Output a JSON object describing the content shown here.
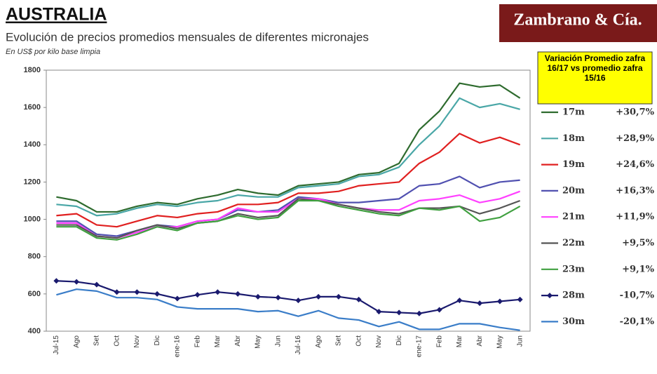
{
  "chart_data": {
    "type": "line",
    "title": "AUSTRALIA",
    "subtitle": "Evolución de precios promedios mensuales de diferentes micronajes",
    "y_label": "En US$ por kilo base limpia",
    "brand": "Zambrano & Cía.",
    "legend_title": "Variación Promedio zafra 16/17 vs promedio zafra 15/16",
    "categories": [
      "Jul-15",
      "Ago",
      "Set",
      "Oct",
      "Nov",
      "Dic",
      "ene-16",
      "Feb",
      "Mar",
      "Abr",
      "May",
      "Jun",
      "Jul-16",
      "Ago",
      "Set",
      "Oct",
      "Nov",
      "Dic",
      "ene-17",
      "Feb",
      "Mar",
      "Abr",
      "May",
      "Jun"
    ],
    "ylim": [
      400,
      1800
    ],
    "yticks": [
      400,
      600,
      800,
      1000,
      1200,
      1400,
      1600,
      1800
    ],
    "grid": false,
    "legend": "right",
    "series": [
      {
        "name": "17m",
        "change": "+30,7%",
        "color": "#2e6b2e",
        "values": [
          1120,
          1100,
          1040,
          1040,
          1070,
          1090,
          1080,
          1110,
          1130,
          1160,
          1140,
          1130,
          1180,
          1190,
          1200,
          1240,
          1250,
          1300,
          1480,
          1580,
          1730,
          1710,
          1720,
          1650
        ]
      },
      {
        "name": "18m",
        "change": "+28,9%",
        "color": "#4aa7a7",
        "values": [
          1080,
          1070,
          1020,
          1030,
          1060,
          1080,
          1070,
          1090,
          1100,
          1130,
          1120,
          1120,
          1170,
          1180,
          1190,
          1230,
          1240,
          1280,
          1400,
          1500,
          1650,
          1600,
          1620,
          1590
        ]
      },
      {
        "name": "19m",
        "change": "+24,6%",
        "color": "#e02020",
        "values": [
          1020,
          1030,
          970,
          960,
          990,
          1020,
          1010,
          1030,
          1040,
          1080,
          1080,
          1090,
          1140,
          1140,
          1150,
          1180,
          1190,
          1200,
          1300,
          1360,
          1460,
          1410,
          1440,
          1400
        ]
      },
      {
        "name": "20m",
        "change": "+16,3%",
        "color": "#5050b0",
        "values": [
          990,
          990,
          920,
          910,
          940,
          970,
          960,
          990,
          1000,
          1050,
          1040,
          1050,
          1120,
          1110,
          1090,
          1090,
          1100,
          1110,
          1180,
          1190,
          1230,
          1170,
          1200,
          1210
        ]
      },
      {
        "name": "21m",
        "change": "+11,9%",
        "color": "#ff40ff",
        "values": [
          980,
          980,
          910,
          900,
          930,
          960,
          960,
          990,
          1000,
          1060,
          1040,
          1040,
          1110,
          1110,
          1080,
          1060,
          1050,
          1050,
          1100,
          1110,
          1130,
          1090,
          1110,
          1150
        ]
      },
      {
        "name": "22m",
        "change": "+9,5%",
        "color": "#555555",
        "values": [
          970,
          970,
          910,
          900,
          940,
          970,
          950,
          980,
          990,
          1030,
          1010,
          1020,
          1110,
          1100,
          1080,
          1060,
          1040,
          1030,
          1060,
          1060,
          1070,
          1030,
          1060,
          1100
        ]
      },
      {
        "name": "23m",
        "change": "+9,1%",
        "color": "#40a040",
        "values": [
          960,
          960,
          900,
          890,
          920,
          960,
          940,
          980,
          990,
          1020,
          1000,
          1010,
          1100,
          1100,
          1070,
          1050,
          1030,
          1020,
          1060,
          1050,
          1070,
          990,
          1010,
          1070
        ]
      },
      {
        "name": "28m",
        "change": "-10,7%",
        "color": "#1a1a6e",
        "marker": "diamond",
        "values": [
          670,
          665,
          650,
          610,
          610,
          600,
          575,
          595,
          610,
          600,
          585,
          580,
          565,
          585,
          585,
          570,
          505,
          500,
          495,
          515,
          565,
          550,
          560,
          570
        ]
      },
      {
        "name": "30m",
        "change": "-20,1%",
        "color": "#3a7dc8",
        "values": [
          595,
          625,
          615,
          580,
          580,
          570,
          530,
          520,
          520,
          520,
          505,
          510,
          480,
          510,
          470,
          460,
          425,
          450,
          410,
          410,
          440,
          440,
          420,
          405
        ]
      }
    ]
  }
}
